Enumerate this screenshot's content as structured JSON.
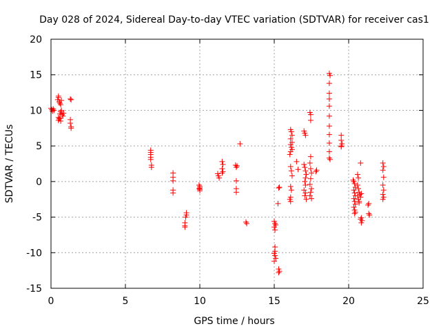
{
  "chart_data": {
    "type": "scatter",
    "title": "Day 028 of 2024, Sidereal Day-to-day VTEC variation (SDTVAR) for receiver cas1",
    "xlabel": "GPS time / hours",
    "ylabel": "SDTVAR / TECUs",
    "xlim": [
      0,
      25
    ],
    "ylim": [
      -15,
      20
    ],
    "x_ticks": [
      0,
      5,
      10,
      15,
      20,
      25
    ],
    "x_tick_labels": [
      "0",
      "5",
      "10",
      "15",
      "20",
      "25"
    ],
    "y_ticks": [
      -15,
      -10,
      -5,
      0,
      5,
      10,
      15,
      20
    ],
    "y_tick_labels": [
      "-15",
      "-10",
      "-5",
      "0",
      "5",
      "10",
      "15",
      "20"
    ],
    "grid": true,
    "marker": "plus",
    "color": "#ff0000",
    "series": [
      {
        "name": "SDTVAR",
        "points": [
          [
            0.0,
            10.3
          ],
          [
            0.05,
            10.1
          ],
          [
            0.1,
            9.9
          ],
          [
            0.15,
            10.2
          ],
          [
            0.2,
            10.0
          ],
          [
            0.45,
            11.5
          ],
          [
            0.5,
            11.8
          ],
          [
            0.5,
            12.0
          ],
          [
            0.55,
            11.2
          ],
          [
            0.6,
            11.0
          ],
          [
            0.65,
            10.8
          ],
          [
            0.7,
            11.4
          ],
          [
            0.5,
            9.0
          ],
          [
            0.5,
            8.6
          ],
          [
            0.55,
            8.8
          ],
          [
            0.6,
            9.5
          ],
          [
            0.65,
            9.8
          ],
          [
            0.7,
            10.0
          ],
          [
            0.75,
            9.4
          ],
          [
            0.8,
            9.2
          ],
          [
            0.85,
            9.6
          ],
          [
            0.6,
            8.9
          ],
          [
            0.65,
            8.5
          ],
          [
            1.3,
            11.6
          ],
          [
            1.35,
            11.5
          ],
          [
            1.3,
            8.7
          ],
          [
            1.3,
            8.2
          ],
          [
            1.35,
            7.7
          ],
          [
            1.35,
            7.5
          ],
          [
            6.7,
            4.4
          ],
          [
            6.7,
            4.1
          ],
          [
            6.7,
            3.8
          ],
          [
            6.7,
            3.4
          ],
          [
            6.7,
            3.1
          ],
          [
            6.75,
            2.3
          ],
          [
            6.75,
            2.0
          ],
          [
            8.2,
            1.2
          ],
          [
            8.2,
            0.6
          ],
          [
            8.2,
            0.1
          ],
          [
            8.2,
            -1.2
          ],
          [
            8.2,
            -1.6
          ],
          [
            9.1,
            -4.4
          ],
          [
            9.1,
            -4.7
          ],
          [
            9.05,
            -5.0
          ],
          [
            9.0,
            -5.8
          ],
          [
            9.0,
            -6.2
          ],
          [
            9.0,
            -6.4
          ],
          [
            9.95,
            -0.5
          ],
          [
            10.0,
            -0.7
          ],
          [
            10.0,
            -0.9
          ],
          [
            10.0,
            -1.1
          ],
          [
            10.0,
            -1.3
          ],
          [
            9.95,
            -1.0
          ],
          [
            11.2,
            1.1
          ],
          [
            11.25,
            0.8
          ],
          [
            11.3,
            0.5
          ],
          [
            11.5,
            2.8
          ],
          [
            11.55,
            2.4
          ],
          [
            11.5,
            1.8
          ],
          [
            11.55,
            1.4
          ],
          [
            11.5,
            1.2
          ],
          [
            12.4,
            2.3
          ],
          [
            12.5,
            2.2
          ],
          [
            12.45,
            2.0
          ],
          [
            12.45,
            0.1
          ],
          [
            12.45,
            -1.0
          ],
          [
            12.45,
            -1.5
          ],
          [
            12.7,
            5.3
          ],
          [
            13.1,
            -5.7
          ],
          [
            13.15,
            -5.9
          ],
          [
            15.0,
            -5.6
          ],
          [
            15.05,
            -5.9
          ],
          [
            15.1,
            -6.1
          ],
          [
            15.0,
            -6.4
          ],
          [
            15.05,
            -6.8
          ],
          [
            15.05,
            -9.2
          ],
          [
            15.05,
            -9.8
          ],
          [
            15.0,
            -10.1
          ],
          [
            15.05,
            -10.4
          ],
          [
            15.1,
            -10.8
          ],
          [
            15.0,
            -11.2
          ],
          [
            15.3,
            -12.3
          ],
          [
            15.35,
            -12.6
          ],
          [
            15.3,
            -12.8
          ],
          [
            15.25,
            -3.1
          ],
          [
            15.35,
            -0.8
          ],
          [
            15.3,
            -0.9
          ],
          [
            16.1,
            7.3
          ],
          [
            16.15,
            7.0
          ],
          [
            16.2,
            6.5
          ],
          [
            16.1,
            6.0
          ],
          [
            16.2,
            5.5
          ],
          [
            16.1,
            5.2
          ],
          [
            16.15,
            4.8
          ],
          [
            16.2,
            4.5
          ],
          [
            16.1,
            4.2
          ],
          [
            16.05,
            3.8
          ],
          [
            16.1,
            2.1
          ],
          [
            16.15,
            1.5
          ],
          [
            16.2,
            0.8
          ],
          [
            16.1,
            -0.7
          ],
          [
            16.15,
            -1.2
          ],
          [
            16.1,
            -2.2
          ],
          [
            16.05,
            -2.5
          ],
          [
            16.1,
            -2.8
          ],
          [
            16.5,
            2.8
          ],
          [
            16.6,
            1.7
          ],
          [
            17.0,
            7.1
          ],
          [
            17.05,
            6.8
          ],
          [
            17.1,
            6.5
          ],
          [
            17.0,
            2.4
          ],
          [
            17.05,
            2.0
          ],
          [
            17.1,
            1.5
          ],
          [
            17.15,
            1.0
          ],
          [
            17.1,
            0.5
          ],
          [
            17.05,
            0.0
          ],
          [
            17.1,
            -0.5
          ],
          [
            17.0,
            -1.2
          ],
          [
            17.1,
            -1.6
          ],
          [
            17.05,
            -2.0
          ],
          [
            17.15,
            -2.5
          ],
          [
            17.4,
            9.7
          ],
          [
            17.45,
            9.4
          ],
          [
            17.45,
            8.6
          ],
          [
            17.45,
            3.5
          ],
          [
            17.4,
            2.6
          ],
          [
            17.45,
            1.8
          ],
          [
            17.5,
            1.2
          ],
          [
            17.45,
            0.4
          ],
          [
            17.4,
            -0.4
          ],
          [
            17.5,
            -1.0
          ],
          [
            17.45,
            -1.5
          ],
          [
            17.4,
            -2.0
          ],
          [
            17.5,
            -2.4
          ],
          [
            17.8,
            1.4
          ],
          [
            17.85,
            1.6
          ],
          [
            18.7,
            15.2
          ],
          [
            18.75,
            14.9
          ],
          [
            18.7,
            13.8
          ],
          [
            18.7,
            12.4
          ],
          [
            18.7,
            11.6
          ],
          [
            18.7,
            10.6
          ],
          [
            18.7,
            9.2
          ],
          [
            18.7,
            7.8
          ],
          [
            18.7,
            6.6
          ],
          [
            18.7,
            5.4
          ],
          [
            18.7,
            4.2
          ],
          [
            18.7,
            3.3
          ],
          [
            18.75,
            3.1
          ],
          [
            19.5,
            6.5
          ],
          [
            19.5,
            5.8
          ],
          [
            19.55,
            5.3
          ],
          [
            19.5,
            5.0
          ],
          [
            19.5,
            4.9
          ],
          [
            20.3,
            0.2
          ],
          [
            20.35,
            0.0
          ],
          [
            20.4,
            -0.3
          ],
          [
            20.45,
            -0.8
          ],
          [
            20.35,
            -1.2
          ],
          [
            20.4,
            -1.6
          ],
          [
            20.45,
            -2.0
          ],
          [
            20.35,
            -2.4
          ],
          [
            20.4,
            -2.8
          ],
          [
            20.45,
            -3.2
          ],
          [
            20.35,
            -3.6
          ],
          [
            20.4,
            -4.0
          ],
          [
            20.45,
            -4.3
          ],
          [
            20.4,
            -4.5
          ],
          [
            20.6,
            1.0
          ],
          [
            20.65,
            0.5
          ],
          [
            20.6,
            -0.5
          ],
          [
            20.65,
            -1.0
          ],
          [
            20.7,
            -1.5
          ],
          [
            20.6,
            -2.0
          ],
          [
            20.65,
            -2.5
          ],
          [
            20.7,
            -3.0
          ],
          [
            20.75,
            -1.8
          ],
          [
            20.8,
            -2.2
          ],
          [
            20.85,
            -1.7
          ],
          [
            20.7,
            -2.8
          ],
          [
            20.8,
            2.6
          ],
          [
            20.85,
            -5.1
          ],
          [
            20.9,
            -5.5
          ],
          [
            20.85,
            -5.8
          ],
          [
            20.8,
            -5.3
          ],
          [
            21.3,
            -3.3
          ],
          [
            21.35,
            -3.1
          ],
          [
            21.35,
            -4.5
          ],
          [
            21.4,
            -4.7
          ],
          [
            22.3,
            2.6
          ],
          [
            22.35,
            2.1
          ],
          [
            22.3,
            1.6
          ],
          [
            22.35,
            0.6
          ],
          [
            22.3,
            -0.5
          ],
          [
            22.35,
            -1.2
          ],
          [
            22.3,
            -1.8
          ],
          [
            22.35,
            -2.2
          ],
          [
            22.3,
            -2.5
          ]
        ]
      }
    ]
  }
}
